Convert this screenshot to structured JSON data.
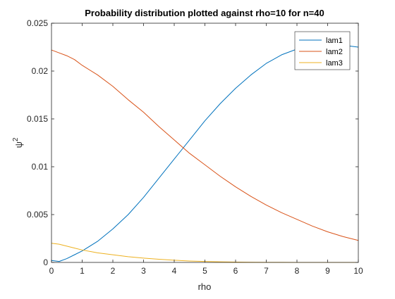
{
  "chart_data": {
    "type": "line",
    "title": "Probability distribution plotted against rho=10 for n=40",
    "xlabel": "rho",
    "ylabel_base": "ψ",
    "ylabel_sup": "2",
    "xlim": [
      0,
      10
    ],
    "ylim": [
      0,
      0.025
    ],
    "xticks": [
      0,
      1,
      2,
      3,
      4,
      5,
      6,
      7,
      8,
      9,
      10
    ],
    "xtick_labels": [
      "0",
      "1",
      "2",
      "3",
      "4",
      "5",
      "6",
      "7",
      "8",
      "9",
      "10"
    ],
    "yticks": [
      0,
      0.005,
      0.01,
      0.015,
      0.02,
      0.025
    ],
    "ytick_labels": [
      "0",
      "0.005",
      "0.01",
      "0.015",
      "0.02",
      "0.025"
    ],
    "grid": false,
    "legend_position": "top-right",
    "x": [
      0,
      0.25,
      0.5,
      0.75,
      1,
      1.5,
      2,
      2.5,
      3,
      3.5,
      4,
      4.5,
      5,
      5.5,
      6,
      6.5,
      7,
      7.5,
      8,
      8.5,
      9,
      9.5,
      10
    ],
    "series": [
      {
        "name": "lam1",
        "color": "#0072BD",
        "values": [
          0.0002,
          0.0001,
          0.0004,
          0.0008,
          0.0012,
          0.0022,
          0.0035,
          0.005,
          0.0068,
          0.0088,
          0.0108,
          0.0128,
          0.0148,
          0.0166,
          0.0182,
          0.0196,
          0.0208,
          0.0217,
          0.0223,
          0.0227,
          0.0228,
          0.0227,
          0.0225
        ]
      },
      {
        "name": "lam2",
        "color": "#D95319",
        "values": [
          0.0222,
          0.0219,
          0.0216,
          0.0212,
          0.0206,
          0.0196,
          0.0184,
          0.017,
          0.0157,
          0.0142,
          0.0128,
          0.0114,
          0.0102,
          0.009,
          0.0079,
          0.0069,
          0.006,
          0.0052,
          0.0045,
          0.0038,
          0.0032,
          0.0027,
          0.0023
        ]
      },
      {
        "name": "lam3",
        "color": "#EDB120",
        "values": [
          0.002,
          0.0019,
          0.0017,
          0.0015,
          0.0013,
          0.001,
          0.0008,
          0.0006,
          0.00045,
          0.00033,
          0.00023,
          0.00015,
          0.0001,
          6e-05,
          4e-05,
          2e-05,
          1e-05,
          5e-06,
          2e-06,
          1e-06,
          0,
          0,
          0
        ]
      }
    ]
  }
}
